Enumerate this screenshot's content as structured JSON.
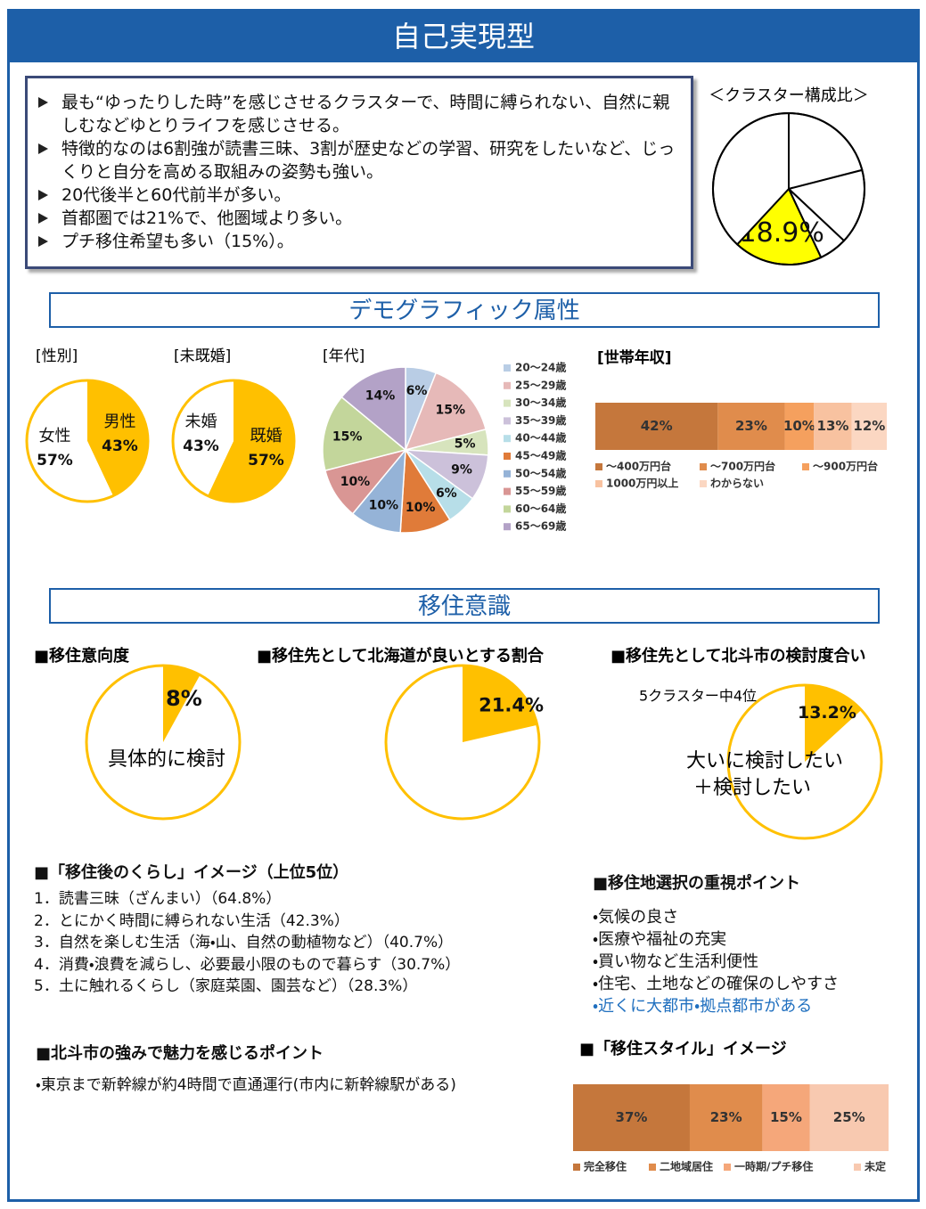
{
  "header": {
    "title": "自己実現型"
  },
  "summary": [
    "最も“ゆったりした時”を感じさせるクラスターで、時間に縛られない、自然に親しむなどゆとりライフを感じさせる。",
    "特徴的なのは6割強が読書三昧、3割が歴史などの学習、研究をしたいなど、じっくりと自分を高める取組みの姿勢も強い。",
    "20代後半と60代前半が多い。",
    "首都圏では21%で、他圏域より多い。",
    "プチ移住希望も多い（15%）。"
  ],
  "sections": [
    "デモグラフィック属性",
    "移住意識"
  ],
  "chart_data": [
    {
      "type": "pie",
      "title": "＜クラスター構成比＞",
      "values": [
        21,
        16,
        6,
        18.9,
        38.1
      ],
      "value_labels": [
        null,
        null,
        null,
        "18.9%",
        null
      ],
      "colors": [
        "#ffffff",
        "#ffffff",
        "#ffffff",
        "#ffff00",
        "#ffffff"
      ]
    },
    {
      "type": "pie",
      "title": "[性別]",
      "categories": [
        "男性",
        "女性"
      ],
      "values": [
        43,
        57
      ],
      "value_labels": [
        "43%",
        "57%"
      ],
      "colors": [
        "#ffc000",
        "#ffffff"
      ]
    },
    {
      "type": "pie",
      "title": "[未既婚]",
      "categories": [
        "既婚",
        "未婚"
      ],
      "values": [
        57,
        43
      ],
      "value_labels": [
        "57%",
        "43%"
      ],
      "colors": [
        "#ffc000",
        "#ffffff"
      ]
    },
    {
      "type": "pie",
      "title": "[年代]",
      "categories": [
        "20～24歳",
        "25～29歳",
        "30～34歳",
        "35～39歳",
        "40～44歳",
        "45～49歳",
        "50～54歳",
        "55～59歳",
        "60～64歳",
        "65～69歳"
      ],
      "values": [
        6,
        15,
        5,
        9,
        6,
        10,
        10,
        10,
        15,
        14
      ],
      "value_labels": [
        "6%",
        "15%",
        "5%",
        "9%",
        "6%",
        "10%",
        "10%",
        "10%",
        "15%",
        "14%"
      ],
      "colors": [
        "#b9cde5",
        "#e6b9b8",
        "#d7e4bd",
        "#ccc1da",
        "#b7dee8",
        "#e07b39",
        "#95b3d7",
        "#d99694",
        "#c3d69b",
        "#b3a2c7"
      ],
      "legend": "right"
    },
    {
      "type": "stacked_bar",
      "title": "[世帯年収]",
      "legend": "bottom",
      "series": [
        {
          "name": "～400万円台",
          "color": "#c5773c",
          "values": [
            42
          ],
          "value_labels": [
            "42%"
          ]
        },
        {
          "name": "～700万円台",
          "color": "#e08c4c",
          "values": [
            23
          ],
          "value_labels": [
            "23%"
          ]
        },
        {
          "name": "～900万円台",
          "color": "#f5a05e",
          "values": [
            10
          ],
          "value_labels": [
            "10%"
          ]
        },
        {
          "name": "1000万円以上",
          "color": "#f8c2a0",
          "values": [
            13
          ],
          "value_labels": [
            "13%"
          ]
        },
        {
          "name": "わからない",
          "color": "#fbd7c2",
          "values": [
            12
          ],
          "value_labels": [
            "12%"
          ]
        }
      ]
    },
    {
      "type": "pie",
      "title": "■移住意向度",
      "values": [
        8
      ],
      "value_labels": [
        "8%"
      ],
      "colors": [
        "#ffc000"
      ],
      "annotation": [
        "具体的に検討"
      ]
    },
    {
      "type": "pie",
      "title": "■移住先として北海道が良いとする割合",
      "values": [
        21.4
      ],
      "value_labels": [
        "21.4%"
      ],
      "colors": [
        "#ffc000"
      ]
    },
    {
      "type": "pie",
      "title": "■移住先として北斗市の検討度合い",
      "subtitle": "5クラスター中4位",
      "values": [
        13.2
      ],
      "value_labels": [
        "13.2%"
      ],
      "colors": [
        "#ffc000"
      ],
      "annotation": [
        "大いに検討したい",
        "＋検討したい"
      ]
    },
    {
      "type": "stacked_bar",
      "title": "■「移住スタイル」イメージ",
      "legend": "bottom",
      "series": [
        {
          "name": "完全移住",
          "color": "#c5773c",
          "values": [
            37
          ],
          "value_labels": [
            "37%"
          ]
        },
        {
          "name": "二地域居住",
          "color": "#e08c4c",
          "values": [
            23
          ],
          "value_labels": [
            "23%"
          ]
        },
        {
          "name": "一時期/プチ移住",
          "color": "#f5a77a",
          "values": [
            15
          ],
          "value_labels": [
            "15%"
          ]
        },
        {
          "name": "未定",
          "color": "#f8c9b0",
          "values": [
            25
          ],
          "value_labels": [
            "25%"
          ]
        }
      ]
    }
  ],
  "lists": [
    {
      "title": "■「移住後のくらし」イメージ（上位5位）",
      "items": [
        "1．読書三昧（ざんまい）（64.8%）",
        "2．とにかく時間に縛られない生活（42.3%）",
        "3．自然を楽しむ生活（海・山、自然の動植物など）（40.7%）",
        "4．消費・浪費を減らし、必要最小限のもので暮らす（30.7%）",
        "5．土に触れるくらし（家庭菜園、園芸など）（28.3%）"
      ]
    },
    {
      "title": "■移住地選択の重視ポイント",
      "items": [
        "・気候の良さ",
        "・医療や福祉の充実",
        "・買い物など生活利便性",
        "・住宅、土地などの確保のしやすさ",
        "・近くに大都市・拠点都市がある"
      ]
    },
    {
      "title": "■北斗市の強みで魅力を感じるポイント",
      "items": [
        "・東京まで新幹線が約4時間で直通運行(市内に新幹線駅がある)"
      ]
    }
  ]
}
